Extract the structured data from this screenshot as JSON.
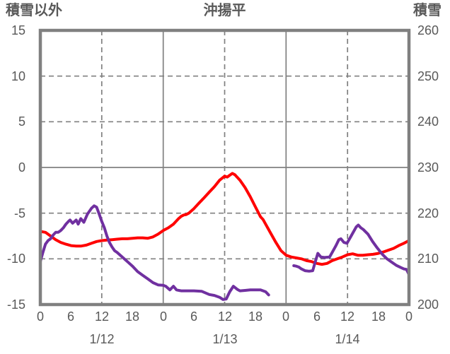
{
  "titles": {
    "left_axis": "積雪以外",
    "chart": "沖揚平",
    "right_axis": "積雪"
  },
  "chart_data": {
    "type": "line",
    "title": "沖揚平",
    "grid_color": "#808080",
    "text_color": "#595959",
    "x_axis": {
      "unit": "hour",
      "range": [
        0,
        72
      ],
      "tick_hours": [
        0,
        6,
        12,
        18,
        24,
        30,
        36,
        42,
        48,
        54,
        60,
        66,
        72
      ],
      "tick_labels": [
        "0",
        "6",
        "12",
        "18",
        "0",
        "6",
        "12",
        "18",
        "0",
        "6",
        "12",
        "18",
        "0"
      ],
      "date_labels": [
        {
          "text": "1/12",
          "hour": 12
        },
        {
          "text": "1/13",
          "hour": 36
        },
        {
          "text": "1/14",
          "hour": 60
        }
      ],
      "solid_gridline_hours": [
        24,
        48
      ],
      "dashed_gridline_hours": [
        12,
        36,
        60
      ]
    },
    "y_axis_left": {
      "title": "積雪以外",
      "range": [
        -15,
        15
      ],
      "tick_values": [
        15,
        10,
        5,
        0,
        -5,
        -10,
        -15
      ],
      "tick_labels": [
        "15",
        "10",
        "5",
        "0",
        "-5",
        "-10",
        "-15"
      ],
      "dashed_gridline_values": [
        10,
        5,
        -5,
        -10
      ],
      "solid_gridline_values": [
        0
      ]
    },
    "y_axis_right": {
      "title": "積雪",
      "range": [
        200,
        260
      ],
      "tick_values": [
        260,
        250,
        240,
        230,
        220,
        210,
        200
      ],
      "tick_labels": [
        "260",
        "250",
        "240",
        "230",
        "220",
        "210",
        "200"
      ]
    },
    "series": [
      {
        "name": "red-line",
        "color": "#ff0000",
        "width": 4,
        "value_axis": "left",
        "segments": [
          [
            [
              0,
              -7.0
            ],
            [
              1,
              -7.1
            ],
            [
              2,
              -7.5
            ],
            [
              3,
              -7.9
            ],
            [
              4,
              -8.2
            ],
            [
              5,
              -8.4
            ],
            [
              6,
              -8.55
            ],
            [
              7,
              -8.6
            ],
            [
              8,
              -8.6
            ],
            [
              9,
              -8.5
            ],
            [
              10,
              -8.3
            ],
            [
              11,
              -8.1
            ],
            [
              12,
              -8.0
            ],
            [
              13,
              -7.95
            ],
            [
              14,
              -7.9
            ],
            [
              15,
              -7.85
            ],
            [
              16,
              -7.8
            ],
            [
              17,
              -7.8
            ],
            [
              18,
              -7.75
            ],
            [
              19,
              -7.7
            ],
            [
              20,
              -7.7
            ],
            [
              21,
              -7.75
            ],
            [
              22,
              -7.6
            ],
            [
              23,
              -7.3
            ],
            [
              24,
              -6.9
            ],
            [
              25,
              -6.6
            ],
            [
              26,
              -6.2
            ],
            [
              27,
              -5.6
            ],
            [
              27.5,
              -5.35
            ],
            [
              28,
              -5.2
            ],
            [
              28.5,
              -5.15
            ],
            [
              29,
              -5.0
            ],
            [
              30,
              -4.5
            ],
            [
              31,
              -3.9
            ],
            [
              32,
              -3.3
            ],
            [
              33,
              -2.7
            ],
            [
              34,
              -2.1
            ],
            [
              35,
              -1.4
            ],
            [
              36,
              -0.95
            ],
            [
              36.5,
              -1.05
            ],
            [
              37,
              -0.85
            ],
            [
              37.5,
              -0.65
            ],
            [
              38,
              -0.8
            ],
            [
              39,
              -1.4
            ],
            [
              40,
              -2.2
            ],
            [
              41,
              -3.2
            ],
            [
              42,
              -4.3
            ],
            [
              43,
              -5.4
            ],
            [
              43.5,
              -5.7
            ],
            [
              44,
              -6.2
            ],
            [
              45,
              -7.2
            ],
            [
              46,
              -8.2
            ],
            [
              47,
              -9.1
            ],
            [
              48,
              -9.6
            ],
            [
              49,
              -9.8
            ],
            [
              50,
              -9.9
            ],
            [
              51,
              -10.0
            ],
            [
              52,
              -10.2
            ],
            [
              53,
              -10.3
            ],
            [
              54,
              -10.5
            ],
            [
              55,
              -10.6
            ],
            [
              56,
              -10.5
            ],
            [
              57,
              -10.2
            ],
            [
              58,
              -10.0
            ],
            [
              59,
              -9.8
            ],
            [
              60,
              -9.55
            ],
            [
              61,
              -9.45
            ],
            [
              62,
              -9.6
            ],
            [
              63,
              -9.6
            ],
            [
              64,
              -9.55
            ],
            [
              65,
              -9.5
            ],
            [
              66,
              -9.4
            ],
            [
              67,
              -9.25
            ],
            [
              68,
              -9.05
            ],
            [
              69,
              -8.85
            ],
            [
              70,
              -8.55
            ],
            [
              71,
              -8.3
            ],
            [
              72,
              -8.0
            ]
          ]
        ]
      },
      {
        "name": "purple-line",
        "color": "#7030a0",
        "width": 4,
        "value_axis": "left",
        "segments": [
          [
            [
              0,
              -10.3
            ],
            [
              0.5,
              -9.3
            ],
            [
              1,
              -8.4
            ],
            [
              1.5,
              -8.0
            ],
            [
              2,
              -7.8
            ],
            [
              2.5,
              -7.4
            ],
            [
              3,
              -7.1
            ],
            [
              3.5,
              -7.1
            ],
            [
              4,
              -6.9
            ],
            [
              4.5,
              -6.6
            ],
            [
              5,
              -6.2
            ],
            [
              5.5,
              -5.9
            ],
            [
              5.8,
              -5.75
            ],
            [
              6.3,
              -6.1
            ],
            [
              7,
              -5.75
            ],
            [
              7.4,
              -6.2
            ],
            [
              7.9,
              -5.6
            ],
            [
              8.5,
              -6.0
            ],
            [
              9.2,
              -5.1
            ],
            [
              10,
              -4.45
            ],
            [
              10.5,
              -4.2
            ],
            [
              11,
              -4.35
            ],
            [
              11.5,
              -5.1
            ],
            [
              12,
              -5.9
            ],
            [
              12.5,
              -6.6
            ],
            [
              13,
              -7.5
            ],
            [
              13.5,
              -8.2
            ],
            [
              14,
              -8.7
            ],
            [
              14.5,
              -9.1
            ],
            [
              15,
              -9.3
            ],
            [
              16,
              -9.8
            ],
            [
              17,
              -10.3
            ],
            [
              18,
              -10.8
            ],
            [
              19,
              -11.4
            ],
            [
              20,
              -11.8
            ],
            [
              21,
              -12.2
            ],
            [
              22,
              -12.6
            ],
            [
              23,
              -12.85
            ],
            [
              24,
              -12.9
            ],
            [
              24.5,
              -13.0
            ],
            [
              25.3,
              -13.4
            ],
            [
              26,
              -13.0
            ],
            [
              26.6,
              -13.4
            ],
            [
              27.5,
              -13.5
            ],
            [
              30,
              -13.5
            ],
            [
              31.5,
              -13.55
            ],
            [
              33,
              -13.9
            ],
            [
              34,
              -14.0
            ],
            [
              35,
              -14.2
            ],
            [
              35.7,
              -14.45
            ],
            [
              36.3,
              -14.4
            ],
            [
              37,
              -13.6
            ],
            [
              37.7,
              -13.0
            ],
            [
              38.5,
              -13.35
            ],
            [
              39,
              -13.5
            ],
            [
              40,
              -13.45
            ],
            [
              41,
              -13.4
            ],
            [
              42,
              -13.4
            ],
            [
              43,
              -13.4
            ],
            [
              44,
              -13.6
            ],
            [
              44.6,
              -13.95
            ]
          ],
          [
            [
              49.5,
              -10.75
            ],
            [
              50,
              -10.8
            ],
            [
              50.5,
              -10.9
            ],
            [
              51,
              -11.1
            ],
            [
              51.7,
              -11.3
            ],
            [
              52.5,
              -11.35
            ],
            [
              53.2,
              -11.3
            ],
            [
              53.6,
              -10.5
            ],
            [
              54.2,
              -9.4
            ],
            [
              54.8,
              -9.8
            ],
            [
              55.5,
              -9.85
            ],
            [
              56.5,
              -9.8
            ],
            [
              57,
              -9.3
            ],
            [
              57.7,
              -8.6
            ],
            [
              58.3,
              -7.9
            ],
            [
              58.7,
              -7.8
            ],
            [
              59.3,
              -8.2
            ],
            [
              59.9,
              -8.3
            ],
            [
              60.5,
              -7.7
            ],
            [
              61.2,
              -7.0
            ],
            [
              61.7,
              -6.5
            ],
            [
              62.1,
              -6.3
            ],
            [
              62.6,
              -6.6
            ],
            [
              63.1,
              -6.8
            ],
            [
              64,
              -7.3
            ],
            [
              64.9,
              -8.1
            ],
            [
              65.8,
              -8.8
            ],
            [
              66.8,
              -9.5
            ],
            [
              67.7,
              -10.0
            ],
            [
              68.6,
              -10.35
            ],
            [
              69.5,
              -10.7
            ],
            [
              70.4,
              -10.95
            ],
            [
              71,
              -11.1
            ],
            [
              71.5,
              -11.15
            ],
            [
              72,
              -11.7
            ]
          ]
        ]
      }
    ]
  }
}
